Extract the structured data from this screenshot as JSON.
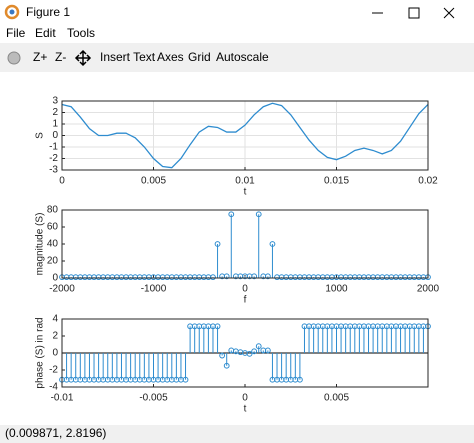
{
  "window": {
    "title": "Figure 1",
    "menu": [
      "File",
      "Edit",
      "Tools"
    ],
    "toolbar": [
      "Z+",
      "Z-",
      "Insert Text",
      "Axes",
      "Grid",
      "Autoscale"
    ],
    "status": "(0.009871, 2.8196)"
  },
  "chart_data": [
    {
      "type": "line",
      "color": "#2e8ccf",
      "grid": true,
      "xlabel": "t",
      "ylabel": "S",
      "xlim": [
        0,
        0.02
      ],
      "ylim": [
        -3,
        3
      ],
      "xticks": [
        0,
        0.005,
        0.01,
        0.015,
        0.02
      ],
      "yticks": [
        -3,
        -2,
        -1,
        0,
        1,
        2,
        3
      ],
      "x": [
        0,
        0.0005,
        0.001,
        0.0015,
        0.002,
        0.0025,
        0.003,
        0.0035,
        0.004,
        0.0045,
        0.005,
        0.0055,
        0.006,
        0.0065,
        0.007,
        0.0075,
        0.008,
        0.0085,
        0.009,
        0.0095,
        0.01,
        0.0105,
        0.011,
        0.0115,
        0.012,
        0.0125,
        0.013,
        0.0135,
        0.014,
        0.0145,
        0.015,
        0.0155,
        0.016,
        0.0165,
        0.017,
        0.0175,
        0.018,
        0.0185,
        0.019,
        0.0195,
        0.02
      ],
      "values": [
        2.7,
        2.5,
        1.6,
        0.6,
        0.0,
        0.0,
        0.2,
        0.2,
        -0.2,
        -1.0,
        -2.0,
        -2.7,
        -2.8,
        -2.0,
        -0.8,
        0.3,
        0.8,
        0.7,
        0.3,
        0.3,
        0.9,
        1.8,
        2.5,
        2.8,
        2.6,
        1.8,
        0.7,
        -0.4,
        -1.3,
        -1.9,
        -2.1,
        -1.8,
        -1.3,
        -1.1,
        -1.3,
        -1.6,
        -1.3,
        -0.5,
        0.7,
        1.9,
        2.7
      ]
    },
    {
      "type": "stem",
      "color": "#2e8ccf",
      "grid": false,
      "xlabel": "f",
      "ylabel": "magnitude (S)",
      "xlim": [
        -2000,
        2000
      ],
      "ylim": [
        0,
        80
      ],
      "xticks": [
        -2000,
        -1000,
        0,
        1000,
        2000
      ],
      "yticks": [
        0,
        20,
        40,
        60,
        80
      ],
      "x": [
        -2000,
        -1950,
        -1900,
        -1850,
        -1800,
        -1750,
        -1700,
        -1650,
        -1600,
        -1550,
        -1500,
        -1450,
        -1400,
        -1350,
        -1300,
        -1250,
        -1200,
        -1150,
        -1100,
        -1050,
        -1000,
        -950,
        -900,
        -850,
        -800,
        -750,
        -700,
        -650,
        -600,
        -550,
        -500,
        -450,
        -400,
        -350,
        -300,
        -250,
        -200,
        -150,
        -100,
        -50,
        0,
        50,
        100,
        150,
        200,
        250,
        300,
        350,
        400,
        450,
        500,
        550,
        600,
        650,
        700,
        750,
        800,
        850,
        900,
        950,
        1000,
        1050,
        1100,
        1150,
        1200,
        1250,
        1300,
        1350,
        1400,
        1450,
        1500,
        1550,
        1600,
        1650,
        1700,
        1750,
        1800,
        1850,
        1900,
        1950,
        2000
      ],
      "values": [
        1,
        1,
        1,
        1,
        1,
        1,
        1,
        1,
        1,
        1,
        1,
        1,
        1,
        1,
        1,
        1,
        1,
        1,
        1,
        1,
        1,
        1,
        1,
        1,
        1,
        1,
        1,
        1,
        1,
        1,
        1,
        1,
        1,
        1,
        40,
        2,
        2,
        75,
        2,
        2,
        2,
        2,
        2,
        75,
        2,
        2,
        40,
        1,
        1,
        1,
        1,
        1,
        1,
        1,
        1,
        1,
        1,
        1,
        1,
        1,
        1,
        1,
        1,
        1,
        1,
        1,
        1,
        1,
        1,
        1,
        1,
        1,
        1,
        1,
        1,
        1,
        1,
        1,
        1,
        1,
        1
      ]
    },
    {
      "type": "stem",
      "color": "#2e8ccf",
      "grid": false,
      "xlabel": "t",
      "ylabel": "phase (S) in rad",
      "xlim": [
        -0.01,
        0.01
      ],
      "ylim": [
        -4,
        4
      ],
      "xticks": [
        -0.01,
        -0.005,
        0,
        0.005
      ],
      "yticks": [
        -4,
        -2,
        0,
        2,
        4
      ],
      "x": [
        -0.01,
        -0.00975,
        -0.0095,
        -0.00925,
        -0.009,
        -0.00875,
        -0.0085,
        -0.00825,
        -0.008,
        -0.00775,
        -0.0075,
        -0.00725,
        -0.007,
        -0.00675,
        -0.0065,
        -0.00625,
        -0.006,
        -0.00575,
        -0.0055,
        -0.00525,
        -0.005,
        -0.00475,
        -0.0045,
        -0.00425,
        -0.004,
        -0.00375,
        -0.0035,
        -0.00325,
        -0.003,
        -0.00275,
        -0.0025,
        -0.00225,
        -0.002,
        -0.00175,
        -0.0015,
        -0.00125,
        -0.001,
        -0.00075,
        -0.0005,
        -0.00025,
        0,
        0.00025,
        0.0005,
        0.00075,
        0.001,
        0.00125,
        0.0015,
        0.00175,
        0.002,
        0.00225,
        0.0025,
        0.00275,
        0.003,
        0.00325,
        0.0035,
        0.00375,
        0.004,
        0.00425,
        0.0045,
        0.00475,
        0.005,
        0.00525,
        0.0055,
        0.00575,
        0.006,
        0.00625,
        0.0065,
        0.00675,
        0.007,
        0.00725,
        0.0075,
        0.00775,
        0.008,
        0.00825,
        0.0085,
        0.00875,
        0.009,
        0.00925,
        0.0095,
        0.00975,
        0.01
      ],
      "values": [
        -3.14,
        -3.14,
        -3.14,
        -3.14,
        -3.14,
        -3.14,
        -3.14,
        -3.14,
        -3.14,
        -3.14,
        -3.14,
        -3.14,
        -3.14,
        -3.14,
        -3.14,
        -3.14,
        -3.14,
        -3.14,
        -3.14,
        -3.14,
        -3.14,
        -3.14,
        -3.14,
        -3.14,
        -3.14,
        -3.14,
        -3.14,
        -3.14,
        3.14,
        3.14,
        3.14,
        3.14,
        3.14,
        3.14,
        3.14,
        -0.3,
        -1.5,
        0.3,
        0.2,
        0.1,
        0,
        -0.1,
        0.2,
        0.8,
        0.3,
        0.3,
        -3.14,
        -3.14,
        -3.14,
        -3.14,
        -3.14,
        -3.14,
        -3.14,
        3.14,
        3.14,
        3.14,
        3.14,
        3.14,
        3.14,
        3.14,
        3.14,
        3.14,
        3.14,
        3.14,
        3.14,
        3.14,
        3.14,
        3.14,
        3.14,
        3.14,
        3.14,
        3.14,
        3.14,
        3.14,
        3.14,
        3.14,
        3.14,
        3.14,
        3.14,
        3.14,
        3.14
      ]
    }
  ]
}
